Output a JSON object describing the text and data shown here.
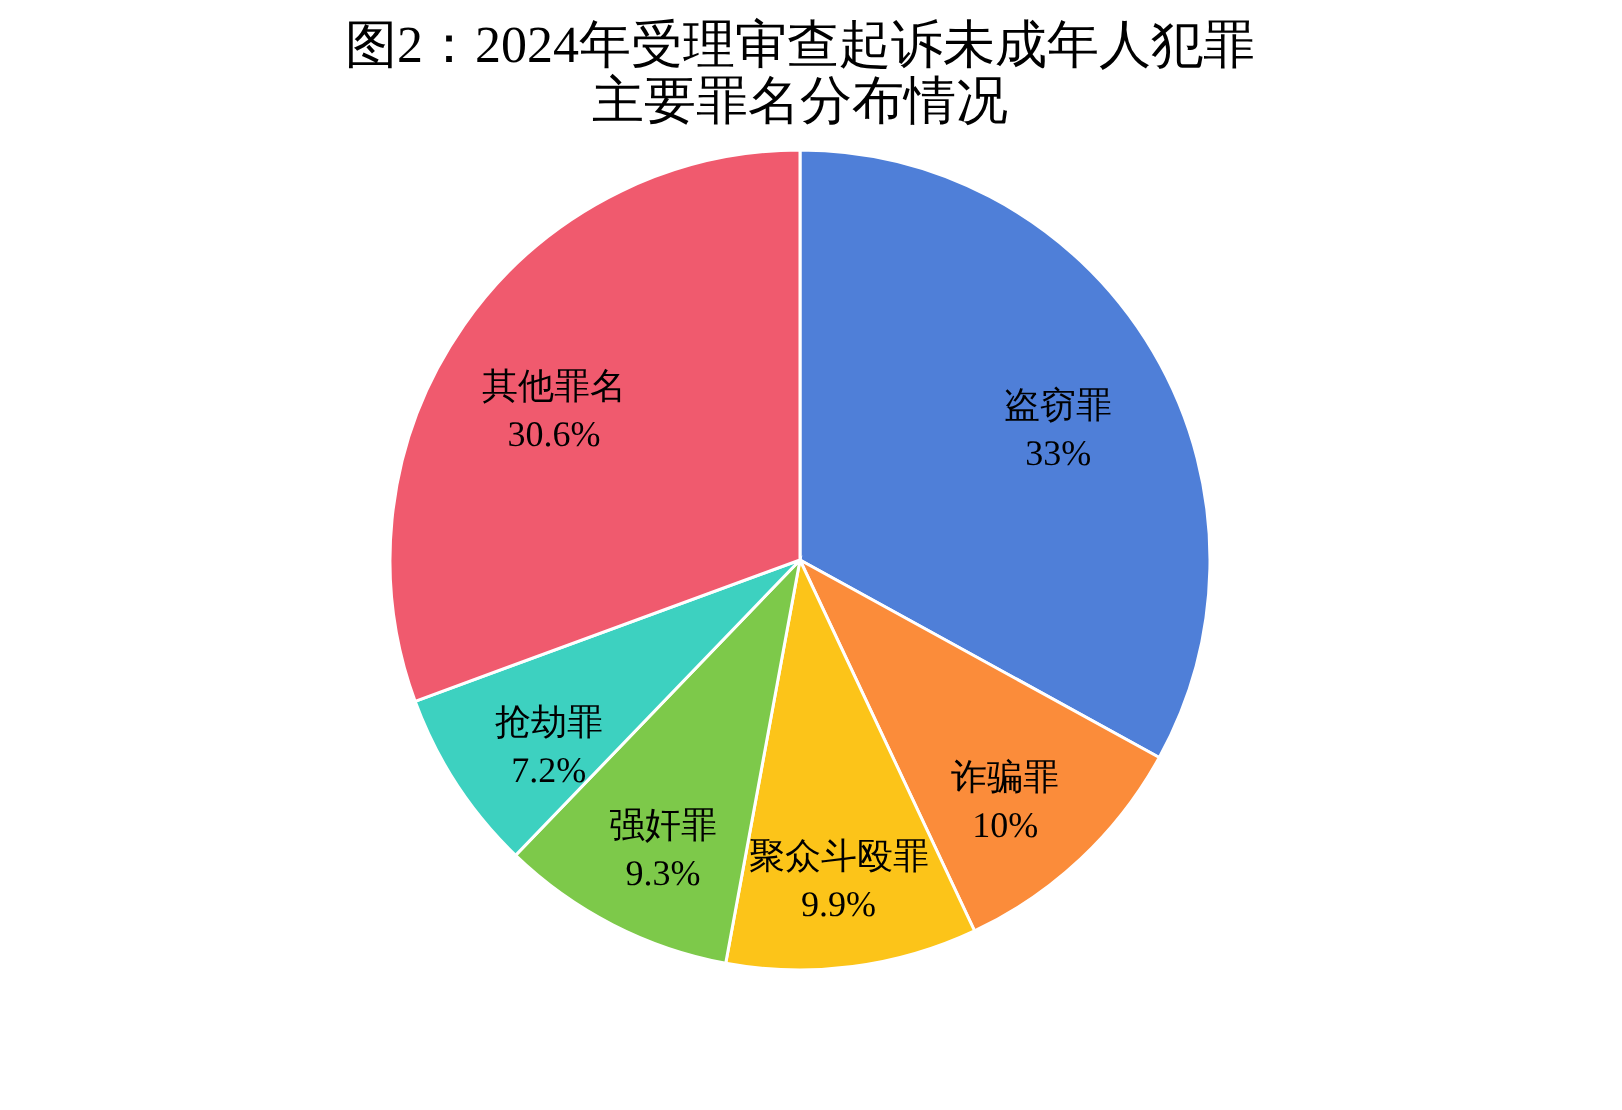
{
  "chart_data": {
    "type": "pie",
    "title": "图2：2024年受理审查起诉未成年人犯罪",
    "subtitle": "主要罪名分布情况",
    "categories": [
      "盗窃罪",
      "诈骗罪",
      "聚众斗殴罪",
      "强奸罪",
      "抢劫罪",
      "其他罪名"
    ],
    "values": [
      33,
      10,
      9.9,
      9.3,
      7.2,
      30.6
    ],
    "value_labels": [
      "33%",
      "10%",
      "9.9%",
      "9.3%",
      "7.2%",
      "30.6%"
    ],
    "colors": [
      "#4f7fd8",
      "#fb8c3a",
      "#fcc419",
      "#7dc94a",
      "#3dd1c0",
      "#f05a6e"
    ],
    "legend": false
  }
}
